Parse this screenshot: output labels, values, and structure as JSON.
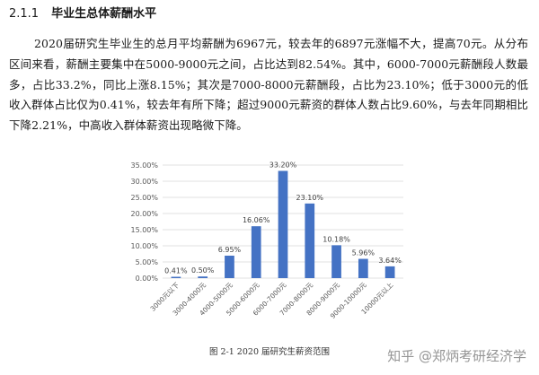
{
  "section": {
    "number": "2.1.1",
    "title": "毕业生总体薪酬水平"
  },
  "paragraph": {
    "text": "2020届研究生毕业生的总月平均薪酬为6967元，较去年的6897元涨幅不大，提高70元。从分布区间来看，薪酬主要集中在5000-9000元之间，占比达到82.54%。其中，6000-7000元薪酬段人数最多，占比33.2%，同比上涨8.15%；其次是7000-8000元薪酬段，占比为23.10%；低于3000元的低收入群体占比仅为0.41%，较去年有所下降；超过9000元薪资的群体人数占比9.60%，与去年同期相比下降2.21%，中高收入群体薪资出现略微下降。"
  },
  "caption": "图 2-1 2020 届研究生薪资范围",
  "watermark": "知乎 @郑炳考研经济学",
  "colors": {
    "bar": "#4472C4",
    "grid": "#d9d9d9",
    "axis_text": "#595959"
  },
  "chart_data": {
    "type": "bar",
    "categories": [
      "3000元以下",
      "3000-4000元",
      "4000-5000元",
      "5000-6000元",
      "6000-7000元",
      "7000-8000元",
      "8000-9000元",
      "9000-10000元",
      "10000元以上"
    ],
    "values": [
      0.41,
      0.5,
      6.95,
      16.06,
      33.2,
      23.1,
      10.18,
      5.96,
      3.64
    ],
    "value_labels": [
      "0.41%",
      "0.50%",
      "6.95%",
      "16.06%",
      "33.20%",
      "23.10%",
      "10.18%",
      "5.96%",
      "3.64%"
    ],
    "y_ticks": [
      "0.00%",
      "5.00%",
      "10.00%",
      "15.00%",
      "20.00%",
      "25.00%",
      "30.00%",
      "35.00%"
    ],
    "ylim": [
      0,
      35
    ],
    "title": "",
    "xlabel": "",
    "ylabel": "",
    "grid": true
  }
}
